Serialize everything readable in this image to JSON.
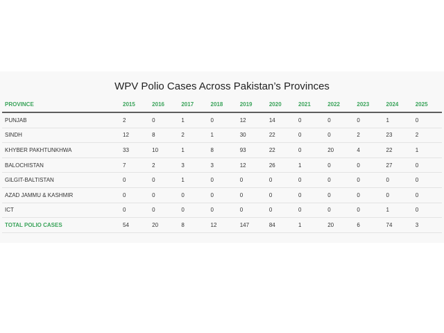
{
  "chart_data": {
    "type": "table",
    "title": "WPV Polio Cases Across Pakistan’s Provinces",
    "header": "PROVINCE",
    "years": [
      "2015",
      "2016",
      "2017",
      "2018",
      "2019",
      "2020",
      "2021",
      "2022",
      "2023",
      "2024",
      "2025"
    ],
    "rows": [
      {
        "name": "PUNJAB",
        "values": [
          2,
          0,
          1,
          0,
          12,
          14,
          0,
          0,
          0,
          1,
          0
        ]
      },
      {
        "name": "SINDH",
        "values": [
          12,
          8,
          2,
          1,
          30,
          22,
          0,
          0,
          2,
          23,
          2
        ]
      },
      {
        "name": "KHYBER PAKHTUNKHWA",
        "values": [
          33,
          10,
          1,
          8,
          93,
          22,
          0,
          20,
          4,
          22,
          1
        ]
      },
      {
        "name": "BALOCHISTAN",
        "values": [
          7,
          2,
          3,
          3,
          12,
          26,
          1,
          0,
          0,
          27,
          0
        ]
      },
      {
        "name": "GILGIT-BALTISTAN",
        "values": [
          0,
          0,
          1,
          0,
          0,
          0,
          0,
          0,
          0,
          0,
          0
        ]
      },
      {
        "name": "AZAD JAMMU & KASHMIR",
        "values": [
          0,
          0,
          0,
          0,
          0,
          0,
          0,
          0,
          0,
          0,
          0
        ]
      },
      {
        "name": "ICT",
        "values": [
          0,
          0,
          0,
          0,
          0,
          0,
          0,
          0,
          0,
          1,
          0
        ]
      }
    ],
    "total": {
      "name": "TOTAL POLIO CASES",
      "values": [
        54,
        20,
        8,
        12,
        147,
        84,
        1,
        20,
        6,
        74,
        3
      ]
    },
    "colors": {
      "header": "#3aa35a",
      "text": "#333333",
      "rule": "#5e5e5e"
    }
  }
}
